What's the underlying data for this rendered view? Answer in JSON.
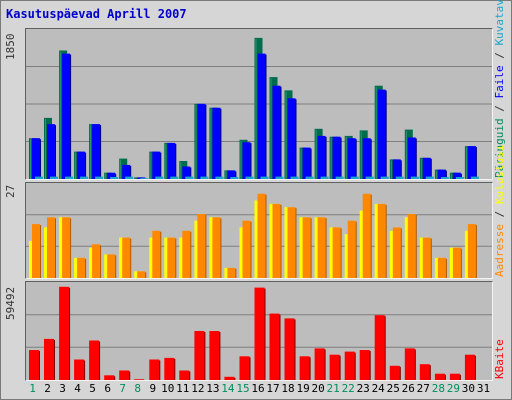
{
  "title": "Kasutuspäevad Aprill 2007",
  "colors": {
    "visits": "#006c4e",
    "visits_light": "#2a9a6a",
    "files": "#0000ff",
    "files_shadow": "#000080",
    "hits_shadow": "#0088aa",
    "pages": "#ffff00",
    "pages_shadow": "#c8c800",
    "sites": "#ff8800",
    "sites_shadow": "#b05a00",
    "kbytes": "#ff0000",
    "kbytes_shadow": "#800000",
    "weekend_tick": "#008e5e",
    "weekday_tick": "#000000",
    "grid": "#7f7f7f"
  },
  "legend": {
    "top_visits": "Päringuid",
    "top_sep1": " / ",
    "top_files": "Faile",
    "top_sep2": " / ",
    "top_pages": "Kuvatavaid",
    "mid_sites": "Aadresse",
    "mid_sep": " / ",
    "mid_visits": "Külastusi",
    "bot_kb": "KBaite"
  },
  "axis_max": {
    "top": "1850",
    "mid": "27",
    "bot": "59492"
  },
  "chart_data": [
    {
      "type": "bar",
      "name": "top-panel",
      "categories": [
        "1",
        "2",
        "3",
        "4",
        "5",
        "6",
        "7",
        "8",
        "9",
        "10",
        "11",
        "12",
        "13",
        "14",
        "15",
        "16",
        "17",
        "18",
        "19",
        "20",
        "21",
        "22",
        "23",
        "24",
        "25",
        "26",
        "27",
        "28",
        "29",
        "30",
        "31"
      ],
      "ylim": [
        0,
        1850
      ],
      "series": [
        {
          "name": "Päringuid",
          "values": [
            520,
            780,
            1640,
            350,
            700,
            80,
            260,
            20,
            350,
            460,
            230,
            960,
            910,
            110,
            500,
            1800,
            1300,
            1130,
            400,
            640,
            540,
            550,
            620,
            1190,
            250,
            630,
            270,
            120,
            80,
            420,
            0
          ]
        },
        {
          "name": "Faile",
          "values": [
            520,
            700,
            1600,
            350,
            700,
            80,
            180,
            20,
            350,
            460,
            160,
            960,
            910,
            110,
            470,
            1600,
            1190,
            1030,
            400,
            550,
            540,
            520,
            520,
            1140,
            250,
            530,
            270,
            120,
            80,
            420,
            0
          ]
        },
        {
          "name": "Kuvatavaid",
          "values": [
            30,
            30,
            30,
            30,
            30,
            25,
            30,
            10,
            30,
            30,
            30,
            30,
            30,
            25,
            30,
            30,
            30,
            30,
            30,
            30,
            30,
            30,
            30,
            30,
            30,
            30,
            30,
            25,
            25,
            30,
            0
          ]
        }
      ]
    },
    {
      "type": "bar",
      "name": "middle-panel",
      "categories": [
        "1",
        "2",
        "3",
        "4",
        "5",
        "6",
        "7",
        "8",
        "9",
        "10",
        "11",
        "12",
        "13",
        "14",
        "15",
        "16",
        "17",
        "18",
        "19",
        "20",
        "21",
        "22",
        "23",
        "24",
        "25",
        "26",
        "27",
        "28",
        "29",
        "30",
        "31"
      ],
      "ylim": [
        0,
        27
      ],
      "series": [
        {
          "name": "Külastusi",
          "values": [
            11,
            15,
            18,
            6,
            9,
            7,
            12,
            2,
            12,
            12,
            12,
            17,
            18,
            3,
            15,
            23,
            22,
            21,
            18,
            18,
            15,
            13,
            20,
            22,
            14,
            18,
            12,
            6,
            9,
            14,
            0
          ]
        },
        {
          "name": "Aadresse",
          "values": [
            16,
            18,
            18,
            6,
            10,
            7,
            12,
            2,
            14,
            12,
            14,
            19,
            18,
            3,
            17,
            25,
            22,
            21,
            18,
            18,
            15,
            17,
            25,
            22,
            15,
            19,
            12,
            6,
            9,
            16,
            0
          ]
        }
      ]
    },
    {
      "type": "bar",
      "name": "bottom-panel",
      "categories": [
        "1",
        "2",
        "3",
        "4",
        "5",
        "6",
        "7",
        "8",
        "9",
        "10",
        "11",
        "12",
        "13",
        "14",
        "15",
        "16",
        "17",
        "18",
        "19",
        "20",
        "21",
        "22",
        "23",
        "24",
        "25",
        "26",
        "27",
        "28",
        "29",
        "30",
        "31"
      ],
      "ylim": [
        0,
        59492
      ],
      "series": [
        {
          "name": "KBaite",
          "values": [
            19000,
            26000,
            59000,
            13000,
            25000,
            3000,
            6000,
            500,
            13000,
            14000,
            6000,
            31000,
            31000,
            2000,
            15000,
            58500,
            42000,
            39000,
            15000,
            20000,
            16000,
            18000,
            19000,
            41000,
            9000,
            20000,
            10000,
            4000,
            4000,
            16000,
            0
          ]
        }
      ]
    }
  ],
  "x_ticks": [
    {
      "label": "1",
      "weekend": true
    },
    {
      "label": "2",
      "weekend": false
    },
    {
      "label": "3",
      "weekend": false
    },
    {
      "label": "4",
      "weekend": false
    },
    {
      "label": "5",
      "weekend": false
    },
    {
      "label": "6",
      "weekend": false
    },
    {
      "label": "7",
      "weekend": true
    },
    {
      "label": "8",
      "weekend": true
    },
    {
      "label": "9",
      "weekend": false
    },
    {
      "label": "10",
      "weekend": false
    },
    {
      "label": "11",
      "weekend": false
    },
    {
      "label": "12",
      "weekend": false
    },
    {
      "label": "13",
      "weekend": false
    },
    {
      "label": "14",
      "weekend": true
    },
    {
      "label": "15",
      "weekend": true
    },
    {
      "label": "16",
      "weekend": false
    },
    {
      "label": "17",
      "weekend": false
    },
    {
      "label": "18",
      "weekend": false
    },
    {
      "label": "19",
      "weekend": false
    },
    {
      "label": "20",
      "weekend": false
    },
    {
      "label": "21",
      "weekend": true
    },
    {
      "label": "22",
      "weekend": true
    },
    {
      "label": "23",
      "weekend": false
    },
    {
      "label": "24",
      "weekend": false
    },
    {
      "label": "25",
      "weekend": false
    },
    {
      "label": "26",
      "weekend": false
    },
    {
      "label": "27",
      "weekend": false
    },
    {
      "label": "28",
      "weekend": true
    },
    {
      "label": "29",
      "weekend": true
    },
    {
      "label": "30",
      "weekend": false
    },
    {
      "label": "31",
      "weekend": false
    }
  ]
}
